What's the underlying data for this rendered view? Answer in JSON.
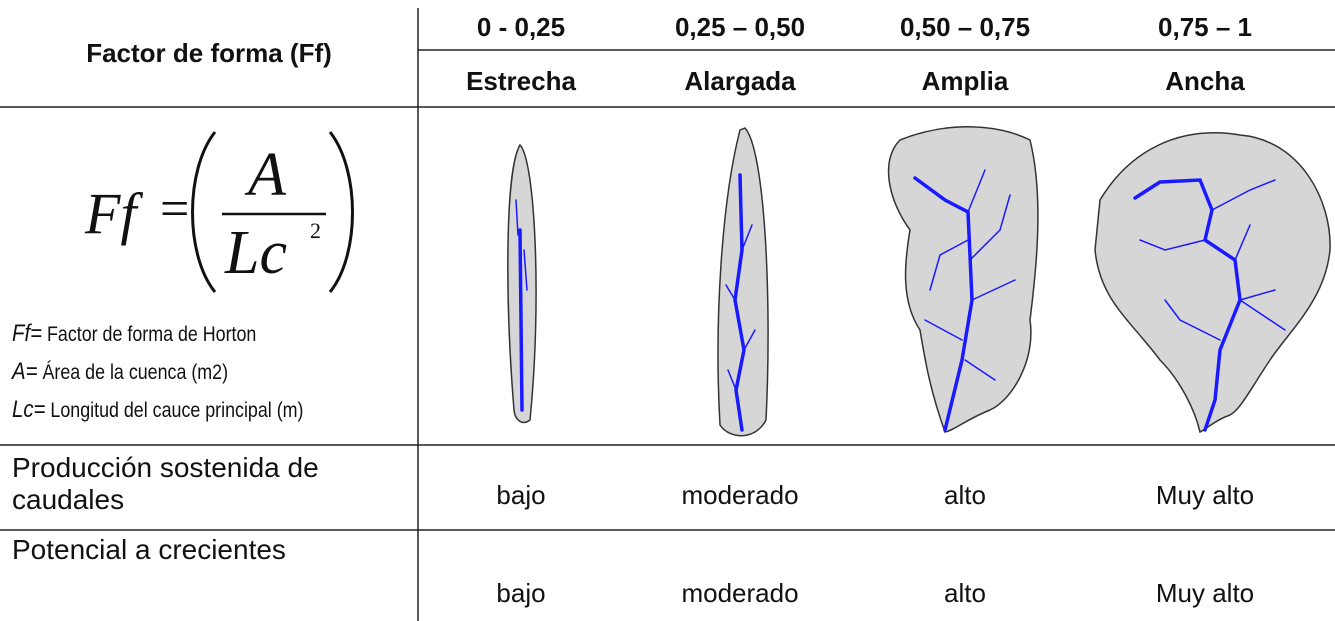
{
  "header": {
    "title": "Factor de forma (Ff)",
    "ranges": [
      "0 - 0,25",
      "0,25 – 0,50",
      "0,50 – 0,75",
      "0,75 – 1"
    ],
    "shapes": [
      "Estrecha",
      "Alargada",
      "Amplia",
      "Ancha"
    ]
  },
  "formula": {
    "lhs": "Ff",
    "equals": "=",
    "numerator": "A",
    "denominator": "Lc",
    "exponent": "2"
  },
  "legend": [
    {
      "symbol": "Ff=",
      "text": "Factor de forma de Horton"
    },
    {
      "symbol": "A=",
      "text": "Área de la cuenca (m2)"
    },
    {
      "symbol": "Lc=",
      "text": "Longitud del cauce principal (m)"
    }
  ],
  "rows": [
    {
      "label": "Producción sostenida de caudales",
      "values": [
        "bajo",
        "moderado",
        "alto",
        "Muy alto"
      ]
    },
    {
      "label": "Potencial a crecientes",
      "values": [
        "bajo",
        "moderado",
        "alto",
        "Muy alto"
      ]
    }
  ]
}
